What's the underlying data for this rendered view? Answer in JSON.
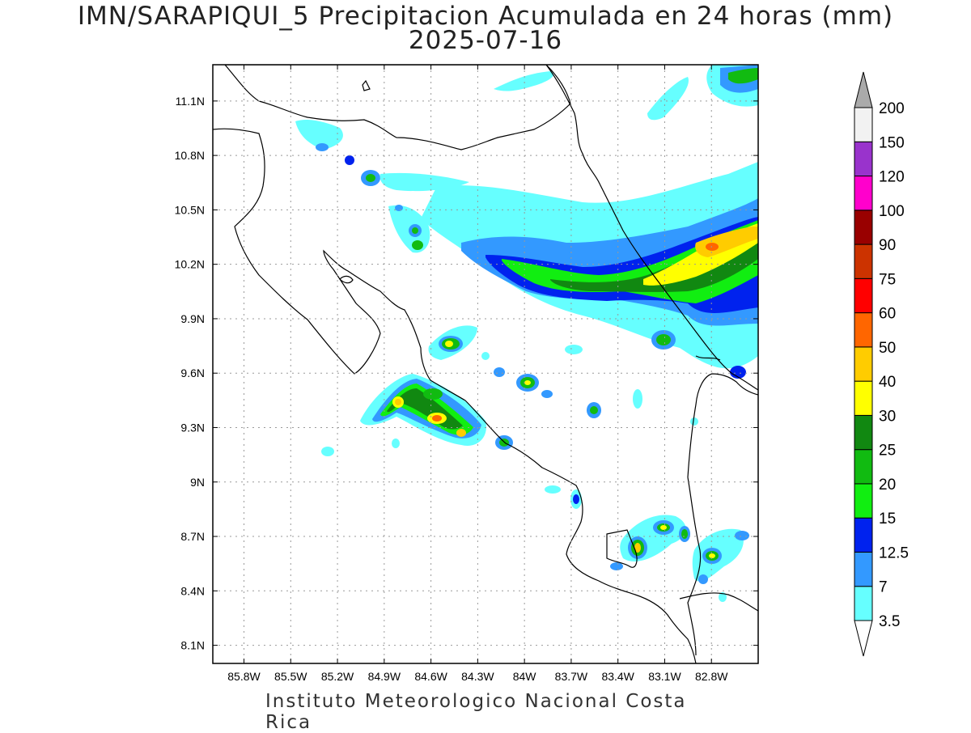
{
  "title": {
    "line1": "IMN/SARAPIQUI_5 Precipitacion Acumulada en 24 horas (mm)",
    "line2": "2025-07-16"
  },
  "footer": "Instituto Meteorologico Nacional Costa Rica",
  "map": {
    "lat_ticks": [
      "11.1N",
      "10.8N",
      "10.5N",
      "10.2N",
      "9.9N",
      "9.6N",
      "9.3N",
      "9N",
      "8.7N",
      "8.4N",
      "8.1N"
    ],
    "lon_ticks": [
      "85.8W",
      "85.5W",
      "85.2W",
      "84.9W",
      "84.6W",
      "84.3W",
      "84W",
      "83.7W",
      "83.4W",
      "83.1W",
      "82.8W"
    ],
    "lat_range": [
      8.0,
      11.3
    ],
    "lon_range": [
      -86.0,
      -82.5
    ],
    "gridlines": "dotted"
  },
  "colorbar": {
    "labels": [
      "3.5",
      "7",
      "12.5",
      "15",
      "20",
      "25",
      "30",
      "40",
      "50",
      "60",
      "75",
      "90",
      "100",
      "120",
      "150",
      "200"
    ],
    "colors": [
      "#66ffff",
      "#3399ff",
      "#0022ee",
      "#11ee11",
      "#11bb11",
      "#118811",
      "#ffff00",
      "#ffcc00",
      "#ff6600",
      "#ff0000",
      "#cc3300",
      "#990000",
      "#ff00cc",
      "#9933cc",
      "#f2f2f2"
    ],
    "end_colors": {
      "top": "#aaaaaa",
      "bottom": "#ffffff"
    }
  },
  "legend_colors": {
    "lt35": "#66ffff",
    "c7": "#3399ff",
    "c125": "#0022ee",
    "c15": "#11ee11",
    "c20": "#11bb11",
    "c25": "#118811",
    "c30": "#ffff00",
    "c40": "#ffcc00",
    "c50": "#ff6600",
    "c60": "#ff0000"
  }
}
